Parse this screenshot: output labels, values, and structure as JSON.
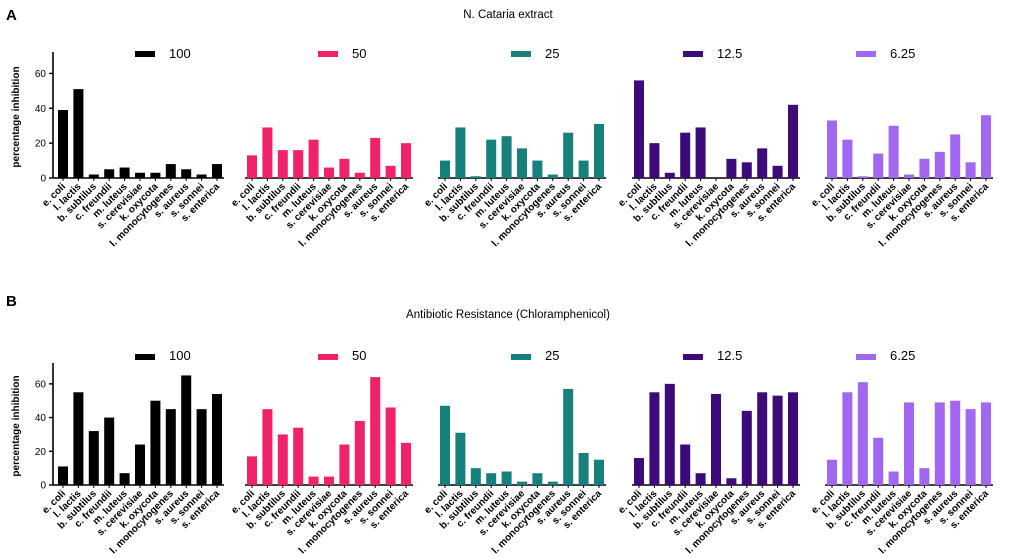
{
  "chart_data": [
    {
      "panel": "A",
      "type": "bar",
      "title": "N. Cataria extract",
      "ylabel": "percentage inhibition",
      "xlabel": "",
      "ylim": [
        0,
        70
      ],
      "yticks": [
        0,
        20,
        40,
        60
      ],
      "legend_position": "top",
      "categories": [
        "e. coli",
        "l. lactis",
        "b. subtilus",
        "c. freundii",
        "m. luteus",
        "s. cerevisiae",
        "k. oxycota",
        "l. monocytogenes",
        "s. aureus",
        "s. sonnei",
        "s. enterica"
      ],
      "series": [
        {
          "name": "100",
          "color": "#000000",
          "values": [
            39,
            51,
            2,
            5,
            6,
            3,
            3,
            8,
            5,
            2,
            8
          ]
        },
        {
          "name": "50",
          "color": "#f0226a",
          "values": [
            13,
            29,
            16,
            16,
            22,
            6,
            11,
            3,
            23,
            7,
            20
          ]
        },
        {
          "name": "25",
          "color": "#15807c",
          "values": [
            10,
            29,
            1,
            22,
            24,
            17,
            10,
            2,
            26,
            10,
            31
          ]
        },
        {
          "name": "12.5",
          "color": "#3d0a7a",
          "values": [
            56,
            20,
            3,
            26,
            29,
            0,
            11,
            9,
            17,
            7,
            42
          ]
        },
        {
          "name": "6.25",
          "color": "#a267f0",
          "values": [
            33,
            22,
            1,
            14,
            30,
            2,
            11,
            15,
            25,
            9,
            36
          ]
        }
      ]
    },
    {
      "panel": "B",
      "type": "bar",
      "title": "Antibiotic Resistance (Chloramphenicol)",
      "ylabel": "percentage inhibition",
      "xlabel": "",
      "ylim": [
        0,
        70
      ],
      "yticks": [
        0,
        20,
        40,
        60
      ],
      "legend_position": "top",
      "categories": [
        "e. coli",
        "l. lactis",
        "b. subtilus",
        "c. freundii",
        "m. luteus",
        "s. cerevisiae",
        "k. oxycota",
        "l. monocytogenes",
        "s. aureus",
        "s. sonnei",
        "s. enterica"
      ],
      "series": [
        {
          "name": "100",
          "color": "#000000",
          "values": [
            11,
            55,
            32,
            40,
            7,
            24,
            50,
            45,
            65,
            45,
            54
          ]
        },
        {
          "name": "50",
          "color": "#f0226a",
          "values": [
            17,
            45,
            30,
            34,
            5,
            5,
            24,
            38,
            64,
            46,
            25
          ]
        },
        {
          "name": "25",
          "color": "#15807c",
          "values": [
            47,
            31,
            10,
            7,
            8,
            2,
            7,
            2,
            57,
            19,
            15
          ]
        },
        {
          "name": "12.5",
          "color": "#3d0a7a",
          "values": [
            16,
            55,
            60,
            24,
            7,
            54,
            4,
            44,
            55,
            53,
            55
          ]
        },
        {
          "name": "6.25",
          "color": "#a267f0",
          "values": [
            15,
            55,
            61,
            28,
            8,
            49,
            10,
            49,
            50,
            45,
            49
          ]
        }
      ]
    }
  ]
}
